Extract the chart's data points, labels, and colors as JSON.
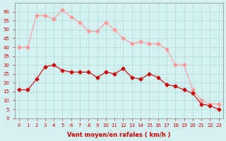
{
  "hours": [
    0,
    1,
    2,
    3,
    4,
    5,
    6,
    7,
    8,
    9,
    10,
    11,
    12,
    13,
    14,
    15,
    16,
    17,
    18,
    19,
    20,
    21,
    22,
    23
  ],
  "wind_avg": [
    16,
    16,
    22,
    29,
    30,
    27,
    26,
    26,
    26,
    23,
    26,
    25,
    28,
    23,
    22,
    25,
    23,
    19,
    18,
    16,
    14,
    8,
    7,
    5
  ],
  "wind_gust": [
    40,
    40,
    58,
    58,
    56,
    61,
    57,
    54,
    49,
    49,
    54,
    50,
    45,
    42,
    43,
    42,
    42,
    39,
    30,
    30,
    16,
    10,
    8,
    8
  ],
  "bg_color": "#d4f0f0",
  "grid_color": "#aadddd",
  "line_avg_color": "#cc0000",
  "line_gust_color": "#ff9999",
  "marker_avg_color": "#cc0000",
  "marker_gust_color": "#ff9999",
  "xlabel": "Vent moyen/en rafales ( km/h )",
  "ylabel": "",
  "title": "",
  "ylim": [
    0,
    65
  ],
  "yticks": [
    0,
    5,
    10,
    15,
    20,
    25,
    30,
    35,
    40,
    45,
    50,
    55,
    60
  ],
  "xlim": [
    -0.5,
    23.5
  ]
}
